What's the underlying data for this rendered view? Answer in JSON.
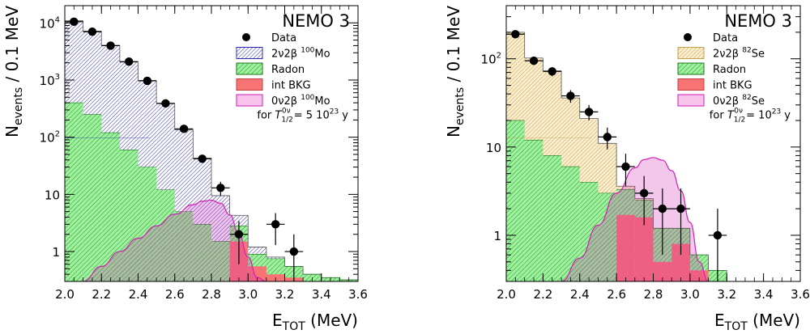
{
  "chart_data": [
    {
      "type": "histogram",
      "title": "NEMO 3",
      "ylabel_main": "N",
      "ylabel_sub": "events",
      "ylabel_tail": " / 0.1 MeV",
      "xlabel_main": "E",
      "xlabel_sub": "TOT",
      "xlabel_tail": " (MeV)",
      "xlim": [
        2.0,
        3.6
      ],
      "ylim": [
        0.3,
        20000
      ],
      "yscale": "log",
      "x_ticks": [
        "2.0",
        "2.2",
        "2.4",
        "2.6",
        "2.8",
        "3.0",
        "3.2",
        "3.4",
        "3.6"
      ],
      "y_ticks": [
        {
          "value": 1,
          "label": "1"
        },
        {
          "value": 10,
          "label": "10"
        },
        {
          "value": 100,
          "label": "10",
          "sup": "2"
        },
        {
          "value": 1000,
          "label": "10",
          "sup": "3"
        },
        {
          "value": 10000,
          "label": "10",
          "sup": "4"
        }
      ],
      "bin_edges": [
        2.0,
        2.1,
        2.2,
        2.3,
        2.4,
        2.5,
        2.6,
        2.7,
        2.8,
        2.9,
        3.0,
        3.1,
        3.2,
        3.3,
        3.4,
        3.5,
        3.6
      ],
      "stack": [
        {
          "key": "intbkg",
          "color": "#f87474",
          "values": [
            0,
            0,
            0,
            0,
            0,
            0,
            0,
            0,
            0,
            1.5,
            0.55,
            0.4,
            0.35,
            0.3,
            0.3,
            0.3
          ]
        },
        {
          "key": "radon",
          "color": "#36c836",
          "values": [
            400,
            250,
            120,
            60,
            30,
            12,
            5,
            3,
            1.5,
            1.3,
            0.35,
            0.35,
            0.2,
            0.1,
            0.05,
            0.02
          ]
        },
        {
          "key": "signal2nu",
          "color": "#2b2bb4",
          "values": [
            10500,
            6900,
            3900,
            2000,
            950,
            380,
            130,
            40,
            8,
            1.5,
            0.3,
            0.05,
            0,
            0,
            0,
            0
          ]
        }
      ],
      "signal_0nu": {
        "color": "#d11fb5",
        "x": [
          2.1,
          2.2,
          2.3,
          2.4,
          2.5,
          2.6,
          2.7,
          2.75,
          2.8,
          2.85,
          2.9,
          2.95,
          3.0,
          3.05,
          3.1
        ],
        "y": [
          0.3,
          0.55,
          1.0,
          1.7,
          2.8,
          4.5,
          6.6,
          7.6,
          7.9,
          7.0,
          4.4,
          2.0,
          0.8,
          0.35,
          0.3
        ]
      },
      "data": [
        {
          "x": 2.05,
          "y": 10500,
          "lo": 10400,
          "hi": 10600
        },
        {
          "x": 2.15,
          "y": 7000,
          "lo": 6920,
          "hi": 7080
        },
        {
          "x": 2.25,
          "y": 4000,
          "lo": 3940,
          "hi": 4060
        },
        {
          "x": 2.35,
          "y": 2100,
          "lo": 2055,
          "hi": 2145
        },
        {
          "x": 2.45,
          "y": 970,
          "lo": 940,
          "hi": 1000
        },
        {
          "x": 2.55,
          "y": 390,
          "lo": 370,
          "hi": 410
        },
        {
          "x": 2.65,
          "y": 140,
          "lo": 128,
          "hi": 152
        },
        {
          "x": 2.75,
          "y": 42,
          "lo": 35.5,
          "hi": 48.5
        },
        {
          "x": 2.85,
          "y": 13,
          "lo": 9.4,
          "hi": 16.6
        },
        {
          "x": 2.95,
          "y": 2,
          "lo": 0.6,
          "hi": 3.4
        },
        {
          "x": 3.15,
          "y": 3,
          "lo": 1.3,
          "hi": 4.7
        },
        {
          "x": 3.25,
          "y": 1,
          "lo": 0.3,
          "hi": 2.0
        }
      ],
      "legend": [
        {
          "key": "data",
          "label": "Data"
        },
        {
          "key": "signal2nu",
          "label": "2ν2β ",
          "sup": "100",
          "tail": "Mo"
        },
        {
          "key": "radon",
          "label": "Radon"
        },
        {
          "key": "intbkg",
          "label": "int BKG"
        },
        {
          "key": "signal0nu",
          "label": "0ν2β ",
          "sup": "100",
          "tail": "Mo"
        }
      ],
      "halflife_note": {
        "prefix": "for ",
        "T": "T",
        "sub": "1/2",
        "sup": "0ν",
        "suffix": " = 5 10",
        "exp": "23",
        "unit": " y"
      }
    },
    {
      "type": "histogram",
      "title": "NEMO 3",
      "ylabel_main": "N",
      "ylabel_sub": "events",
      "ylabel_tail": " / 0.1 MeV",
      "xlabel_main": "E",
      "xlabel_sub": "TOT",
      "xlabel_tail": " (MeV)",
      "xlim": [
        2.0,
        3.6
      ],
      "ylim": [
        0.3,
        400
      ],
      "yscale": "log",
      "x_ticks": [
        "2.0",
        "2.2",
        "2.4",
        "2.6",
        "2.8",
        "3.0",
        "3.2",
        "3.4",
        "3.6"
      ],
      "y_ticks": [
        {
          "value": 1,
          "label": "1"
        },
        {
          "value": 10,
          "label": "10"
        },
        {
          "value": 100,
          "label": "10",
          "sup": "2"
        }
      ],
      "bin_edges": [
        2.0,
        2.1,
        2.2,
        2.3,
        2.4,
        2.5,
        2.6,
        2.7,
        2.8,
        2.9,
        3.0,
        3.1,
        3.2,
        3.3,
        3.4,
        3.5,
        3.6
      ],
      "stack": [
        {
          "key": "intbkg",
          "color": "#f87474",
          "values": [
            0,
            0,
            0,
            0,
            0,
            0,
            1.7,
            1.6,
            0.5,
            0.8,
            0.4,
            0.3,
            0,
            0,
            0,
            0
          ]
        },
        {
          "key": "radon",
          "color": "#36c836",
          "values": [
            20,
            12,
            8,
            6,
            4,
            3,
            1.6,
            0.9,
            0.7,
            0.4,
            0.2,
            0.1,
            0,
            0,
            0,
            0
          ]
        },
        {
          "key": "signal2nu",
          "color": "#c2a24a",
          "values": [
            180,
            90,
            65,
            30,
            17,
            8,
            0.3,
            0.1,
            0,
            0,
            0,
            0,
            0,
            0,
            0,
            0
          ]
        }
      ],
      "signal_0nu": {
        "color": "#d11fb5",
        "x": [
          2.3,
          2.4,
          2.5,
          2.6,
          2.7,
          2.75,
          2.8,
          2.85,
          2.9,
          2.95,
          3.0,
          3.05,
          3.1
        ],
        "y": [
          0.3,
          0.55,
          1.3,
          3.0,
          5.8,
          7.2,
          7.6,
          7.1,
          5.4,
          3.2,
          1.4,
          0.5,
          0.3
        ]
      },
      "data": [
        {
          "x": 2.05,
          "y": 190,
          "lo": 176,
          "hi": 204
        },
        {
          "x": 2.15,
          "y": 95,
          "lo": 85.3,
          "hi": 104.7
        },
        {
          "x": 2.25,
          "y": 72,
          "lo": 63.5,
          "hi": 80.5
        },
        {
          "x": 2.35,
          "y": 38,
          "lo": 31.8,
          "hi": 44.2
        },
        {
          "x": 2.45,
          "y": 25,
          "lo": 20,
          "hi": 30
        },
        {
          "x": 2.55,
          "y": 13,
          "lo": 9.4,
          "hi": 16.6
        },
        {
          "x": 2.65,
          "y": 6,
          "lo": 3.6,
          "hi": 8.4
        },
        {
          "x": 2.75,
          "y": 3,
          "lo": 1.3,
          "hi": 4.7
        },
        {
          "x": 2.85,
          "y": 2,
          "lo": 0.6,
          "hi": 3.4
        },
        {
          "x": 2.95,
          "y": 2,
          "lo": 0.6,
          "hi": 3.4
        },
        {
          "x": 3.15,
          "y": 1,
          "lo": 0.3,
          "hi": 2.0
        }
      ],
      "legend": [
        {
          "key": "data",
          "label": "Data"
        },
        {
          "key": "signal2nu",
          "label": "2ν2β ",
          "sup": "82",
          "tail": "Se"
        },
        {
          "key": "radon",
          "label": "Radon"
        },
        {
          "key": "intbkg",
          "label": "int BKG"
        },
        {
          "key": "signal0nu",
          "label": "0ν2β ",
          "sup": "82",
          "tail": "Se"
        }
      ],
      "halflife_note": {
        "prefix": "for ",
        "T": "T",
        "sub": "1/2",
        "sup": "0ν",
        "suffix": " = 10",
        "exp": "23",
        "unit": " y"
      }
    }
  ]
}
